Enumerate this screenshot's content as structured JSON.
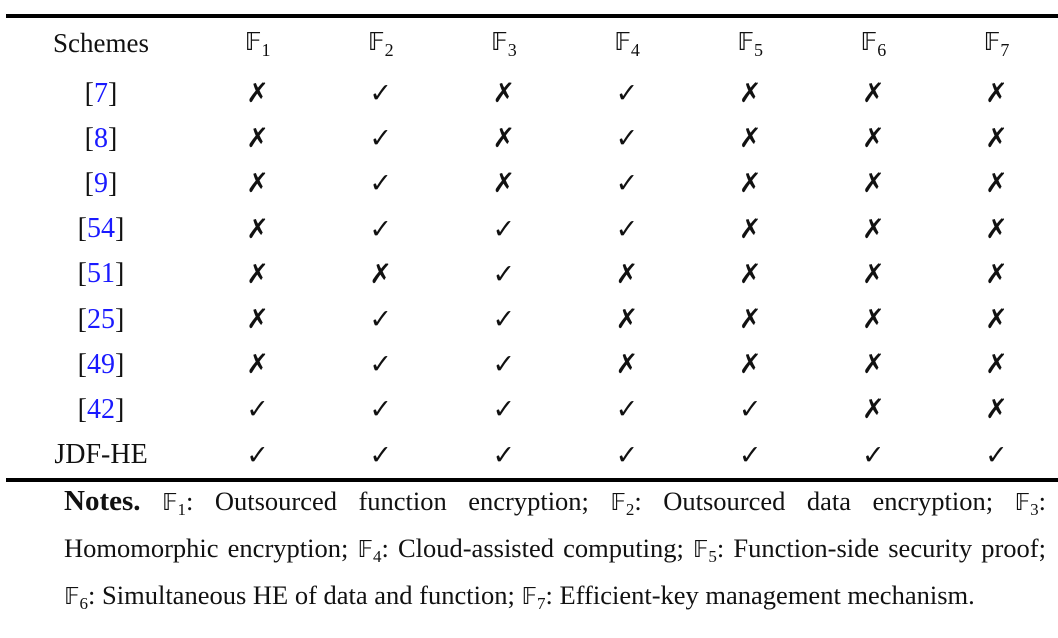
{
  "table": {
    "headers": [
      "Schemes",
      "𝔽₁",
      "𝔽₂",
      "𝔽₃",
      "𝔽₄",
      "𝔽₅",
      "𝔽₆",
      "𝔽₇"
    ],
    "header_features": [
      {
        "letter": "𝔽",
        "sub": "1"
      },
      {
        "letter": "𝔽",
        "sub": "2"
      },
      {
        "letter": "𝔽",
        "sub": "3"
      },
      {
        "letter": "𝔽",
        "sub": "4"
      },
      {
        "letter": "𝔽",
        "sub": "5"
      },
      {
        "letter": "𝔽",
        "sub": "6"
      },
      {
        "letter": "𝔽",
        "sub": "7"
      }
    ],
    "check_symbol": "✓",
    "cross_symbol": "✗",
    "rows": [
      {
        "scheme": "[7]",
        "ref": "7",
        "is_citation": true,
        "marks": [
          "✗",
          "✓",
          "✗",
          "✓",
          "✗",
          "✗",
          "✗"
        ]
      },
      {
        "scheme": "[8]",
        "ref": "8",
        "is_citation": true,
        "marks": [
          "✗",
          "✓",
          "✗",
          "✓",
          "✗",
          "✗",
          "✗"
        ]
      },
      {
        "scheme": "[9]",
        "ref": "9",
        "is_citation": true,
        "marks": [
          "✗",
          "✓",
          "✗",
          "✓",
          "✗",
          "✗",
          "✗"
        ]
      },
      {
        "scheme": "[54]",
        "ref": "54",
        "is_citation": true,
        "marks": [
          "✗",
          "✓",
          "✓",
          "✓",
          "✗",
          "✗",
          "✗"
        ]
      },
      {
        "scheme": "[51]",
        "ref": "51",
        "is_citation": true,
        "marks": [
          "✗",
          "✗",
          "✓",
          "✗",
          "✗",
          "✗",
          "✗"
        ]
      },
      {
        "scheme": "[25]",
        "ref": "25",
        "is_citation": true,
        "marks": [
          "✗",
          "✓",
          "✓",
          "✗",
          "✗",
          "✗",
          "✗"
        ]
      },
      {
        "scheme": "[49]",
        "ref": "49",
        "is_citation": true,
        "marks": [
          "✗",
          "✓",
          "✓",
          "✗",
          "✗",
          "✗",
          "✗"
        ]
      },
      {
        "scheme": "[42]",
        "ref": "42",
        "is_citation": true,
        "marks": [
          "✓",
          "✓",
          "✓",
          "✓",
          "✓",
          "✗",
          "✗"
        ]
      },
      {
        "scheme": "JDF-HE",
        "ref": "JDF-HE",
        "is_citation": false,
        "marks": [
          "✓",
          "✓",
          "✓",
          "✓",
          "✓",
          "✓",
          "✓"
        ]
      }
    ],
    "citation_color": "#1a1aff"
  },
  "notes": {
    "heading": "Notes.",
    "items": [
      {
        "sub": "1",
        "text": ": Outsourced function encryption;"
      },
      {
        "sub": "2",
        "text": ": Outsourced data encryption;"
      },
      {
        "sub": "3",
        "text": ": Homomorphic encryption;"
      },
      {
        "sub": "4",
        "text": ": Cloud-assisted computing;"
      },
      {
        "sub": "5",
        "text": ": Function-side security proof;"
      },
      {
        "sub": "6",
        "text": ": Simultaneous HE of data and function;"
      },
      {
        "sub": "7",
        "text": ": Efficient-key management mechanism."
      }
    ]
  }
}
